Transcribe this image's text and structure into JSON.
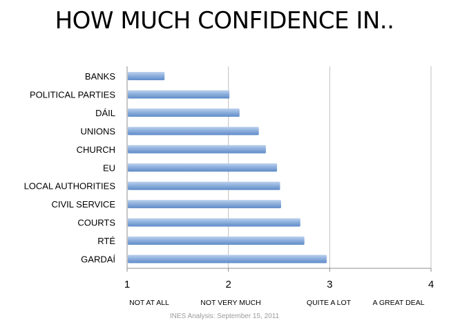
{
  "title": "HOW MUCH CONFIDENCE IN..",
  "footer": "INES Analysis: September 15, 2011",
  "colors": {
    "bar_light": "#bdd2ee",
    "bar_mid": "#8fb0dd",
    "bar_dark": "#5f8cc8",
    "gridline": "#bfbfbf",
    "axis": "#8c8c8c"
  },
  "chart_data": {
    "type": "bar",
    "orientation": "horizontal",
    "title": "HOW MUCH CONFIDENCE IN..",
    "categories": [
      "BANKS",
      "POLITICAL PARTIES",
      "DÁIL",
      "UNIONS",
      "CHURCH",
      "EU",
      "LOCAL AUTHORITIES",
      "CIVIL SERVICE",
      "COURTS",
      "RTÉ",
      "GARDAÍ"
    ],
    "values": [
      1.37,
      2.01,
      2.11,
      2.3,
      2.37,
      2.48,
      2.51,
      2.52,
      2.71,
      2.75,
      2.97
    ],
    "xlim": [
      1,
      4
    ],
    "xticks": [
      "1",
      "2",
      "3",
      "4"
    ],
    "scale_labels": [
      "NOT AT ALL",
      "NOT VERY MUCH",
      "QUITE A LOT",
      "A GREAT DEAL"
    ],
    "grid": true,
    "legend": "none"
  }
}
